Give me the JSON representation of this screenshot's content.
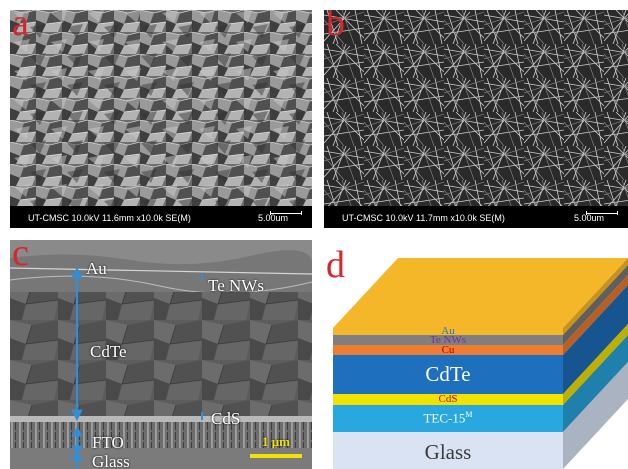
{
  "panels": {
    "a": {
      "letter": "a",
      "info": "UT-CMSC 10.0kV 11.6mm x10.0k SE(M)",
      "scale": "5.00um"
    },
    "b": {
      "letter": "b",
      "info": "UT-CMSC 10.0kV 11.7mm x10.0k SE(M)",
      "scale": "5.00um"
    },
    "c": {
      "letter": "c",
      "labels": {
        "au": "Au",
        "te_nws": "Te NWs",
        "cdte": "CdTe",
        "cds": "CdS",
        "fto": "FTO",
        "glass": "Glass"
      },
      "scale_bar": "1 μm"
    },
    "d": {
      "letter": "d",
      "layers": {
        "au": "Au",
        "te_nws": "Te NWs",
        "cu": "Cu",
        "cdte": "CdTe",
        "cds": "CdS",
        "tec_main": "TEC-15",
        "tec_sup": "M",
        "glass": "Glass"
      },
      "colors": {
        "au": "#f5b72a",
        "te_nws": "#7f7f7f",
        "cu": "#ed7d31",
        "cdte": "#1f6fbf",
        "cds": "#f2e200",
        "tec": "#29a8e0",
        "glass": "#dae3f3",
        "label_au": "#2e75b6",
        "label_te": "#7030a0",
        "label_cu": "#c00000",
        "label_cds": "#c00000"
      }
    }
  }
}
